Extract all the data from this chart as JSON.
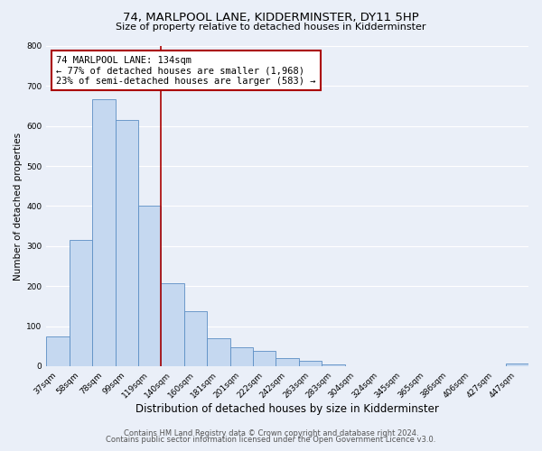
{
  "title": "74, MARLPOOL LANE, KIDDERMINSTER, DY11 5HP",
  "subtitle": "Size of property relative to detached houses in Kidderminster",
  "xlabel": "Distribution of detached houses by size in Kidderminster",
  "ylabel": "Number of detached properties",
  "bin_labels": [
    "37sqm",
    "58sqm",
    "78sqm",
    "99sqm",
    "119sqm",
    "140sqm",
    "160sqm",
    "181sqm",
    "201sqm",
    "222sqm",
    "242sqm",
    "263sqm",
    "283sqm",
    "304sqm",
    "324sqm",
    "345sqm",
    "365sqm",
    "386sqm",
    "406sqm",
    "427sqm",
    "447sqm"
  ],
  "bar_values": [
    75,
    315,
    668,
    615,
    400,
    207,
    137,
    70,
    48,
    37,
    20,
    14,
    5,
    0,
    0,
    0,
    0,
    0,
    0,
    0,
    7
  ],
  "bar_color": "#c5d8f0",
  "bar_edge_color": "#5b8ec4",
  "subject_line_color": "#aa0000",
  "annotation_line1": "74 MARLPOOL LANE: 134sqm",
  "annotation_line2": "← 77% of detached houses are smaller (1,968)",
  "annotation_line3": "23% of semi-detached houses are larger (583) →",
  "annotation_box_edge_color": "#aa0000",
  "ylim": [
    0,
    800
  ],
  "yticks": [
    0,
    100,
    200,
    300,
    400,
    500,
    600,
    700,
    800
  ],
  "footer_line1": "Contains HM Land Registry data © Crown copyright and database right 2024.",
  "footer_line2": "Contains public sector information licensed under the Open Government Licence v3.0.",
  "bg_color": "#eaeff8",
  "plot_bg_color": "#eaeff8",
  "grid_color": "#ffffff",
  "title_fontsize": 9.5,
  "subtitle_fontsize": 8,
  "xlabel_fontsize": 8.5,
  "ylabel_fontsize": 7.5,
  "tick_fontsize": 6.5,
  "footer_fontsize": 6,
  "annotation_fontsize": 7.5
}
